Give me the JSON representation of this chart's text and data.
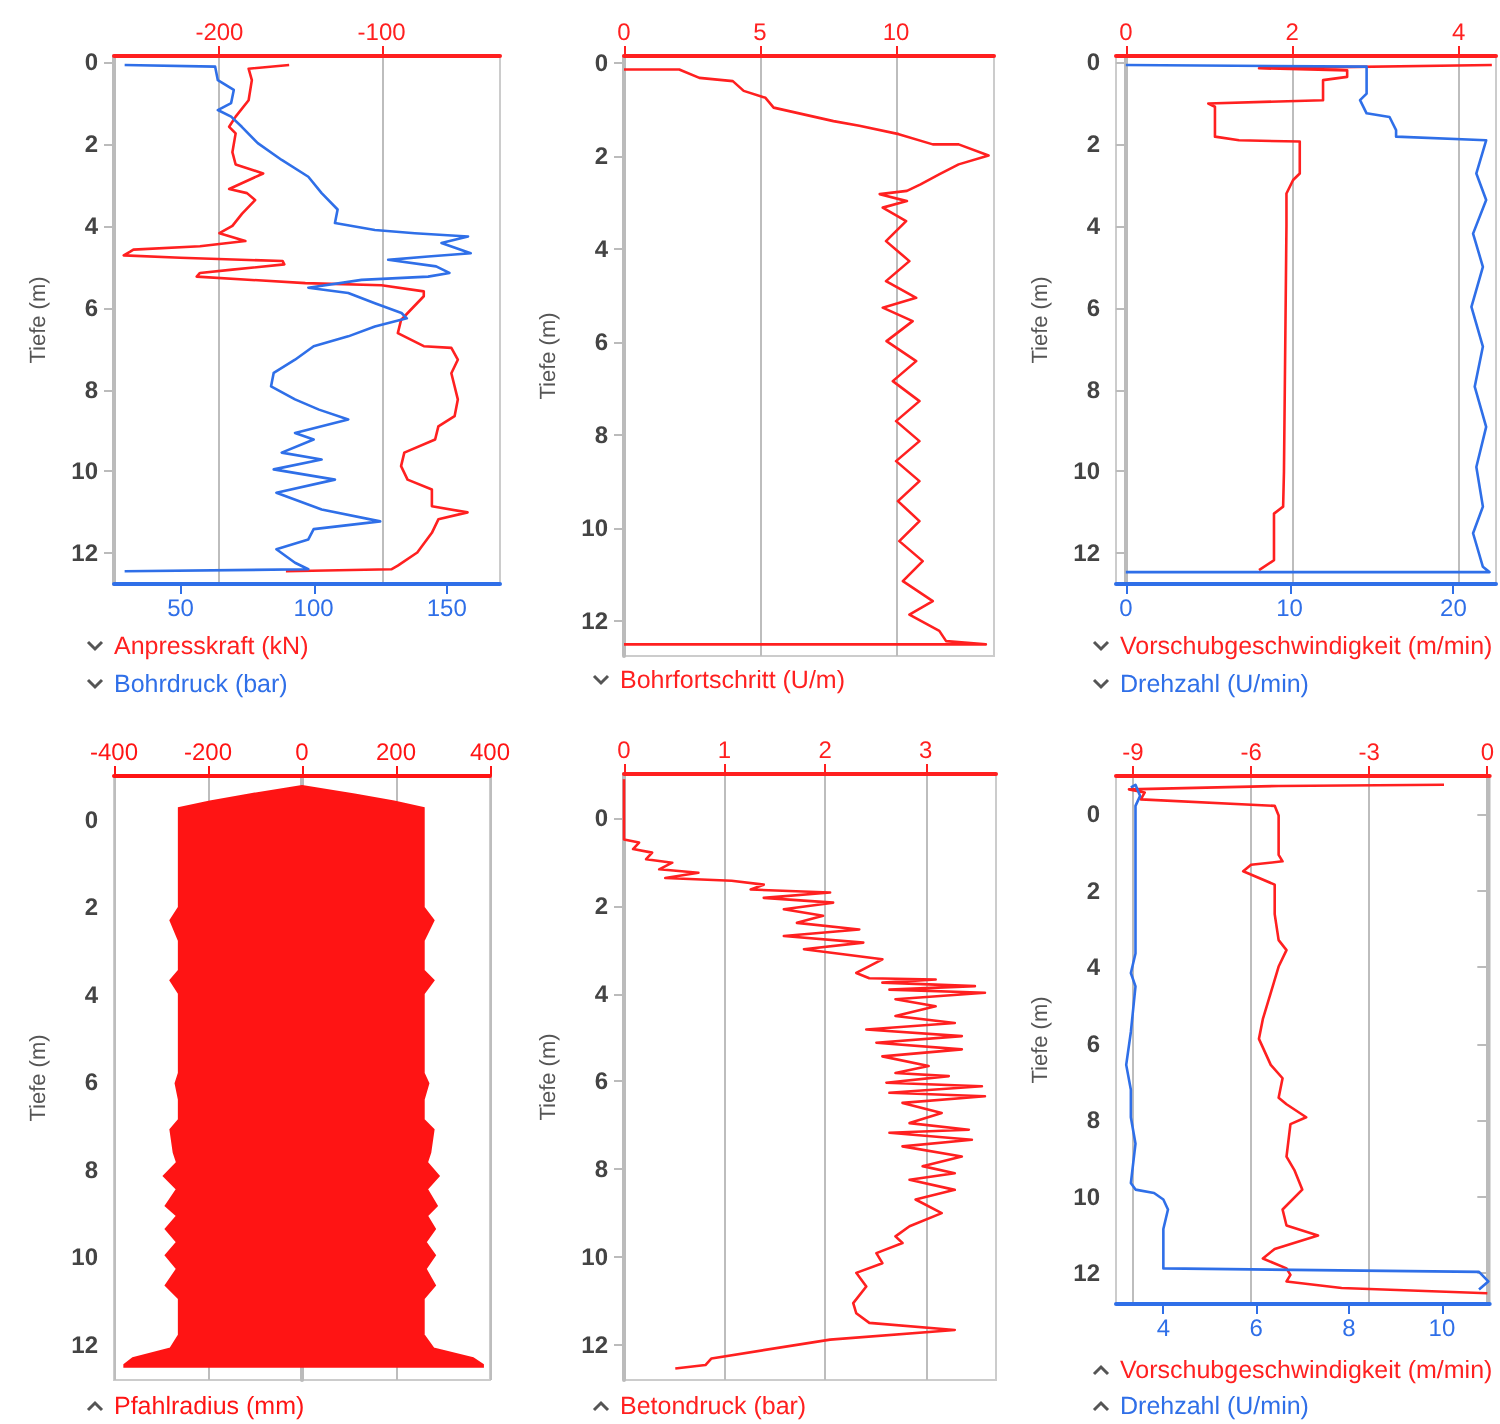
{
  "chart_data": [
    {
      "type": "line",
      "ylabel": "Tiefe (m)",
      "ylim": [
        12.75,
        -0.15
      ],
      "yticks": [
        0,
        2,
        4,
        6,
        8,
        10,
        12
      ],
      "xlim": [
        25,
        170
      ],
      "xticks": [
        50,
        100,
        150
      ],
      "x2lim": [
        -265,
        -27
      ],
      "x2ticks": [
        -200,
        -100
      ],
      "grid": "x",
      "legend": "bottom",
      "series": [
        {
          "name": "Anpresskraft (kN)",
          "color": "#ff2020",
          "axis": "x2",
          "x": [
            -157,
            -182,
            -180,
            -182,
            -190,
            -194,
            -190,
            -192,
            -190,
            -173,
            -194,
            -183,
            -178,
            -186,
            -192,
            -200,
            -184,
            -212,
            -253,
            -255,
            -259,
            -224,
            -161,
            -160,
            -192,
            -212,
            -214,
            -147,
            -100,
            -74,
            -74,
            -82,
            -88,
            -90,
            -74,
            -57,
            -53,
            -57,
            -55,
            -53,
            -55,
            -65,
            -67,
            -86,
            -88,
            -84,
            -69,
            -69,
            -47,
            -65,
            -69,
            -78,
            -90,
            -94,
            -159
          ],
          "values": [
            0.07,
            0.16,
            0.44,
            0.93,
            1.33,
            1.58,
            1.74,
            2.2,
            2.5,
            2.72,
            3.1,
            3.2,
            3.37,
            3.7,
            4.0,
            4.18,
            4.37,
            4.5,
            4.58,
            4.63,
            4.72,
            4.78,
            4.86,
            4.94,
            5.07,
            5.15,
            5.24,
            5.4,
            5.45,
            5.6,
            5.72,
            6.05,
            6.3,
            6.62,
            6.94,
            6.98,
            7.27,
            7.6,
            7.92,
            8.24,
            8.65,
            8.9,
            9.22,
            9.54,
            9.87,
            10.2,
            10.44,
            10.85,
            11.0,
            11.17,
            11.5,
            11.98,
            12.3,
            12.39,
            12.44
          ]
        },
        {
          "name": "Bohrdruck (bar)",
          "color": "#2f6fe8",
          "x": [
            29,
            63,
            64,
            70,
            69,
            64,
            69,
            73,
            79,
            88,
            98,
            103,
            109,
            108,
            123,
            138,
            158,
            148,
            159,
            143,
            128,
            146,
            151,
            143,
            118,
            98,
            113,
            123,
            133,
            135,
            123,
            113,
            100,
            93,
            85,
            84,
            93,
            102,
            113,
            93,
            100,
            88,
            103,
            85,
            108,
            86,
            103,
            125,
            100,
            98,
            86,
            93,
            98,
            29
          ],
          "values": [
            0.07,
            0.11,
            0.44,
            0.68,
            1.0,
            1.17,
            1.33,
            1.58,
            1.98,
            2.39,
            2.8,
            3.2,
            3.6,
            3.93,
            4.1,
            4.18,
            4.26,
            4.42,
            4.67,
            4.75,
            4.83,
            4.99,
            5.15,
            5.24,
            5.32,
            5.51,
            5.64,
            5.89,
            6.13,
            6.26,
            6.46,
            6.7,
            6.94,
            7.27,
            7.59,
            7.92,
            8.24,
            8.49,
            8.73,
            9.06,
            9.22,
            9.54,
            9.71,
            9.95,
            10.2,
            10.52,
            10.93,
            11.22,
            11.41,
            11.66,
            11.9,
            12.23,
            12.39,
            12.44
          ]
        }
      ]
    },
    {
      "type": "line",
      "ylabel": "Tiefe (m)",
      "ylim": [
        12.75,
        -0.15
      ],
      "yticks": [
        0,
        2,
        4,
        6,
        8,
        10,
        12
      ],
      "xlim": [
        0,
        13.6
      ],
      "xticks": [
        0,
        5,
        10
      ],
      "grid": "x",
      "legend": "bottom",
      "series": [
        {
          "name": "Bohrfortschritt (U/m)",
          "color": "#ff2020",
          "x": [
            0,
            2.03,
            2.77,
            4.0,
            4.4,
            5.2,
            5.5,
            7.7,
            8.65,
            10.1,
            11.35,
            12.3,
            13.4,
            12.3,
            11.6,
            10.9,
            10.4,
            9.4,
            10.4,
            9.51,
            10.37,
            9.63,
            10.49,
            9.63,
            10.74,
            9.51,
            10.61,
            9.65,
            10.74,
            9.88,
            10.86,
            10.0,
            10.86,
            10.0,
            10.86,
            10.07,
            10.86,
            10.12,
            10.98,
            10.25,
            11.35,
            10.49,
            11.59,
            11.84,
            13.3,
            0
          ],
          "values": [
            0.14,
            0.14,
            0.32,
            0.39,
            0.6,
            0.75,
            0.96,
            1.25,
            1.35,
            1.53,
            1.75,
            1.75,
            1.99,
            2.18,
            2.39,
            2.61,
            2.75,
            2.82,
            2.97,
            3.11,
            3.4,
            3.83,
            4.26,
            4.69,
            5.05,
            5.26,
            5.55,
            5.98,
            6.41,
            6.84,
            7.27,
            7.7,
            8.13,
            8.56,
            8.99,
            9.42,
            9.85,
            10.28,
            10.71,
            11.14,
            11.57,
            11.86,
            12.21,
            12.43,
            12.5,
            12.5
          ]
        }
      ]
    },
    {
      "type": "line",
      "ylabel": "Tiefe (m)",
      "ylim": [
        12.75,
        -0.15
      ],
      "yticks": [
        0,
        2,
        4,
        6,
        8,
        10,
        12
      ],
      "xlim": [
        -0.6,
        22.6
      ],
      "xticks": [
        0,
        10,
        20
      ],
      "x2lim": [
        -0.12,
        4.45
      ],
      "x2ticks": [
        0,
        2,
        4
      ],
      "grid": "x",
      "legend": "bottom",
      "series": [
        {
          "name": "Vorschubgeschwindigkeit (m/min)",
          "color": "#ff2020",
          "axis": "x2",
          "x": [
            4.4,
            1.6,
            2.66,
            2.66,
            2.37,
            2.37,
            0.99,
            1.07,
            1.07,
            1.36,
            2.09,
            2.09,
            2.01,
            1.93,
            1.93,
            1.92,
            1.91,
            1.9,
            1.89,
            1.78,
            1.78,
            1.6
          ],
          "values": [
            0.07,
            0.15,
            0.2,
            0.36,
            0.44,
            0.93,
            1.01,
            1.09,
            1.82,
            1.91,
            1.94,
            2.72,
            2.88,
            3.21,
            4.0,
            6.0,
            8.0,
            10.0,
            10.86,
            11.03,
            12.17,
            12.41
          ]
        },
        {
          "name": "Drehzahl (U/min)",
          "color": "#2f6fe8",
          "x": [
            0,
            14.7,
            14.7,
            14.3,
            14.7,
            16.1,
            16.5,
            16.5,
            22.0,
            21.4,
            22.0,
            21.2,
            21.8,
            21.1,
            21.8,
            21.3,
            22.0,
            21.4,
            21.8,
            21.2,
            21.8,
            22.2,
            0
          ],
          "values": [
            0.07,
            0.11,
            0.77,
            0.93,
            1.25,
            1.34,
            1.66,
            1.82,
            1.91,
            2.72,
            3.37,
            4.19,
            5.0,
            5.98,
            6.95,
            7.93,
            8.91,
            9.89,
            10.86,
            11.51,
            12.33,
            12.46,
            12.46
          ]
        }
      ]
    },
    {
      "type": "area",
      "ylabel": "Tiefe (m)",
      "ylim": [
        12.8,
        -1
      ],
      "yticks": [
        0,
        2,
        4,
        6,
        8,
        10,
        12
      ],
      "xlim": [
        -400,
        400
      ],
      "xticks": [
        -400,
        -200,
        0,
        200,
        400
      ],
      "grid": "x",
      "legend": "bottom",
      "series": [
        {
          "name": "Pfahlradius (mm)",
          "color": "#ff1414",
          "x": [
            0,
            112,
            196,
            259,
            259,
            280,
            259,
            259,
            280,
            259,
            259,
            269,
            259,
            259,
            280,
            273,
            266,
            291,
            266,
            287,
            266,
            283,
            263,
            283,
            263,
            283,
            259,
            259,
            280,
            364,
            385,
            385,
            -378,
            -378,
            -360,
            -280,
            -262,
            -262,
            -290,
            -266,
            -290,
            -266,
            -290,
            -266,
            -290,
            -266,
            -294,
            -266,
            -273,
            -280,
            -262,
            -262,
            -269,
            -262,
            -262,
            -280,
            -262,
            -262,
            -280,
            -262,
            -262,
            -196,
            -112
          ],
          "values": [
            -0.77,
            -0.58,
            -0.42,
            -0.27,
            2.0,
            2.3,
            2.76,
            3.44,
            3.67,
            3.97,
            5.79,
            6.02,
            6.39,
            6.85,
            7.08,
            7.6,
            7.83,
            8.14,
            8.44,
            8.82,
            9.05,
            9.35,
            9.65,
            9.95,
            10.26,
            10.64,
            10.94,
            11.77,
            12.08,
            12.3,
            12.45,
            12.5,
            12.5,
            12.45,
            12.3,
            12.08,
            11.77,
            10.94,
            10.64,
            10.26,
            9.95,
            9.65,
            9.35,
            9.05,
            8.82,
            8.44,
            8.14,
            7.83,
            7.6,
            7.08,
            6.85,
            6.39,
            6.02,
            5.79,
            3.97,
            3.67,
            3.44,
            2.76,
            2.3,
            2.0,
            -0.27,
            -0.42,
            -0.58
          ]
        }
      ]
    },
    {
      "type": "line",
      "ylabel": "Tiefe (m)",
      "ylim": [
        12.8,
        -1
      ],
      "yticks": [
        0,
        2,
        4,
        6,
        8,
        10,
        12
      ],
      "xlim": [
        0,
        3.7
      ],
      "xticks": [
        0,
        1,
        2,
        3
      ],
      "grid": "x",
      "legend": "bottom",
      "series": [
        {
          "name": "Betondruck (bar)",
          "color": "#ff2020",
          "x": [
            0,
            0,
            0.15,
            0.09,
            0.28,
            0.22,
            0.48,
            0.35,
            0.74,
            0.41,
            1.07,
            1.39,
            1.26,
            2.05,
            1.39,
            2.08,
            1.59,
            1.98,
            1.72,
            2.34,
            1.59,
            2.38,
            1.79,
            2.57,
            2.31,
            2.44,
            3.1,
            2.57,
            3.49,
            2.64,
            3.59,
            2.7,
            3.1,
            2.7,
            3.29,
            2.41,
            3.36,
            2.51,
            3.36,
            2.57,
            3.03,
            2.7,
            3.23,
            2.61,
            3.56,
            2.64,
            3.59,
            2.77,
            3.16,
            2.84,
            3.43,
            2.64,
            3.46,
            2.77,
            3.36,
            2.97,
            3.29,
            2.84,
            3.29,
            2.9,
            3.16,
            2.84,
            2.7,
            2.77,
            2.51,
            2.57,
            2.31,
            2.41,
            2.28,
            2.31,
            2.44,
            3.29,
            2.05,
            0.87,
            0.81,
            0.51
          ],
          "values": [
            -0.88,
            0.49,
            0.56,
            0.71,
            0.79,
            0.94,
            1.02,
            1.17,
            1.25,
            1.37,
            1.43,
            1.52,
            1.63,
            1.7,
            1.82,
            1.93,
            2.08,
            2.23,
            2.39,
            2.54,
            2.69,
            2.84,
            2.99,
            3.22,
            3.53,
            3.65,
            3.68,
            3.75,
            3.83,
            3.91,
            3.98,
            4.13,
            4.29,
            4.51,
            4.67,
            4.82,
            4.97,
            5.12,
            5.27,
            5.43,
            5.65,
            5.81,
            5.88,
            6.03,
            6.11,
            6.26,
            6.34,
            6.49,
            6.72,
            6.95,
            7.1,
            7.17,
            7.33,
            7.48,
            7.71,
            7.93,
            8.09,
            8.24,
            8.47,
            8.69,
            9.0,
            9.3,
            9.53,
            9.68,
            9.91,
            10.14,
            10.36,
            10.67,
            11.05,
            11.28,
            11.5,
            11.66,
            11.88,
            12.31,
            12.46,
            12.54
          ]
        }
      ]
    },
    {
      "type": "line",
      "ylabel": "Tiefe (m)",
      "ylim": [
        12.8,
        -1
      ],
      "yticks": [
        0,
        2,
        4,
        6,
        8,
        10,
        12
      ],
      "xlim": [
        2.98,
        11.03
      ],
      "xticks": [
        4,
        6,
        8,
        10
      ],
      "x2lim": [
        -9.43,
        0.06
      ],
      "x2ticks": [
        -9,
        -6,
        -3,
        0
      ],
      "grid": "x",
      "legend": "bottom",
      "series": [
        {
          "name": "Vorschubgeschwindigkeit (m/min)",
          "color": "#ff2020",
          "axis": "x2",
          "x": [
            -1.1,
            -5.3,
            -9.1,
            -8.7,
            -8.8,
            -5.4,
            -5.3,
            -5.3,
            -5.2,
            -6.0,
            -6.2,
            -5.4,
            -5.4,
            -5.3,
            -5.1,
            -5.3,
            -5.5,
            -5.7,
            -5.8,
            -5.5,
            -5.2,
            -5.3,
            -5.1,
            -4.6,
            -5.0,
            -5.1,
            -4.9,
            -4.7,
            -5.2,
            -5.1,
            -4.3,
            -5.4,
            -5.7,
            -5.1,
            -5.0,
            -5.1,
            -3.7,
            0
          ],
          "values": [
            -0.77,
            -0.74,
            -0.65,
            -0.57,
            -0.39,
            -0.22,
            0.03,
            1.06,
            1.23,
            1.32,
            1.49,
            1.84,
            2.61,
            3.29,
            3.55,
            3.98,
            4.67,
            5.35,
            5.87,
            6.55,
            6.9,
            7.41,
            7.58,
            7.92,
            8.1,
            8.95,
            9.3,
            9.81,
            10.33,
            10.75,
            11.01,
            11.36,
            11.61,
            11.87,
            12.04,
            12.21,
            12.38,
            12.52
          ]
        },
        {
          "name": "Drehzahl (U/min)",
          "color": "#2f6fe8",
          "x": [
            3.3,
            3.4,
            3.5,
            3.4,
            3.4,
            3.4,
            3.3,
            3.4,
            3.3,
            3.2,
            3.3,
            3.3,
            3.4,
            3.3,
            3.4,
            3.8,
            4.0,
            4.1,
            4.0,
            4.0,
            10.8,
            11.0,
            10.8
          ],
          "values": [
            -0.7,
            -0.77,
            -0.48,
            -0.22,
            0.03,
            3.64,
            4.15,
            4.5,
            5.69,
            6.55,
            7.2,
            7.92,
            8.61,
            9.64,
            9.81,
            9.9,
            10.07,
            10.33,
            10.84,
            11.87,
            11.96,
            12.21,
            12.42
          ]
        }
      ]
    }
  ]
}
